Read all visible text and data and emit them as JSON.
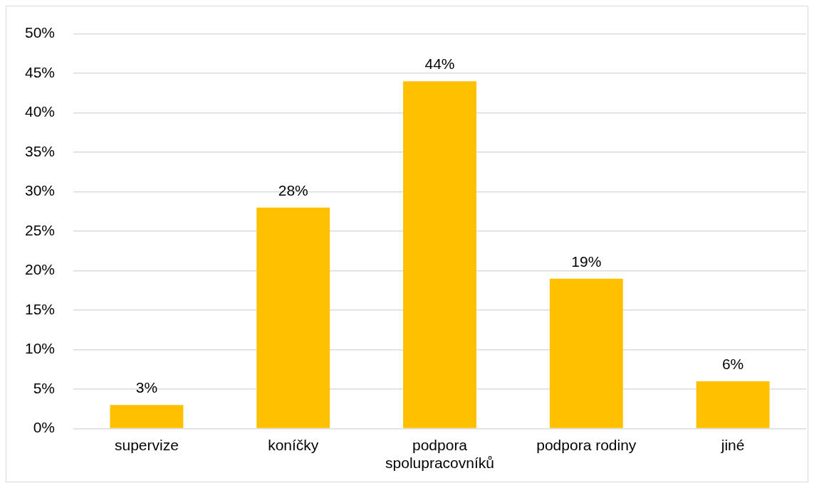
{
  "chart_data": {
    "type": "bar",
    "categories": [
      "supervize",
      "koníčky",
      "podpora spolupracovníků",
      "podpora rodiny",
      "jiné"
    ],
    "values": [
      3,
      28,
      44,
      19,
      6
    ],
    "color": "#ffc000",
    "value_labels": [
      "3%",
      "28%",
      "44%",
      "19%",
      "6%"
    ],
    "ylim": [
      0,
      50
    ],
    "yticks": [
      {
        "value": 0,
        "label": "0%"
      },
      {
        "value": 5,
        "label": "5%"
      },
      {
        "value": 10,
        "label": "10%"
      },
      {
        "value": 15,
        "label": "15%"
      },
      {
        "value": 20,
        "label": "20%"
      },
      {
        "value": 25,
        "label": "25%"
      },
      {
        "value": 30,
        "label": "30%"
      },
      {
        "value": 35,
        "label": "35%"
      },
      {
        "value": 40,
        "label": "40%"
      },
      {
        "value": 45,
        "label": "45%"
      },
      {
        "value": 50,
        "label": "50%"
      }
    ],
    "grid": "y"
  }
}
